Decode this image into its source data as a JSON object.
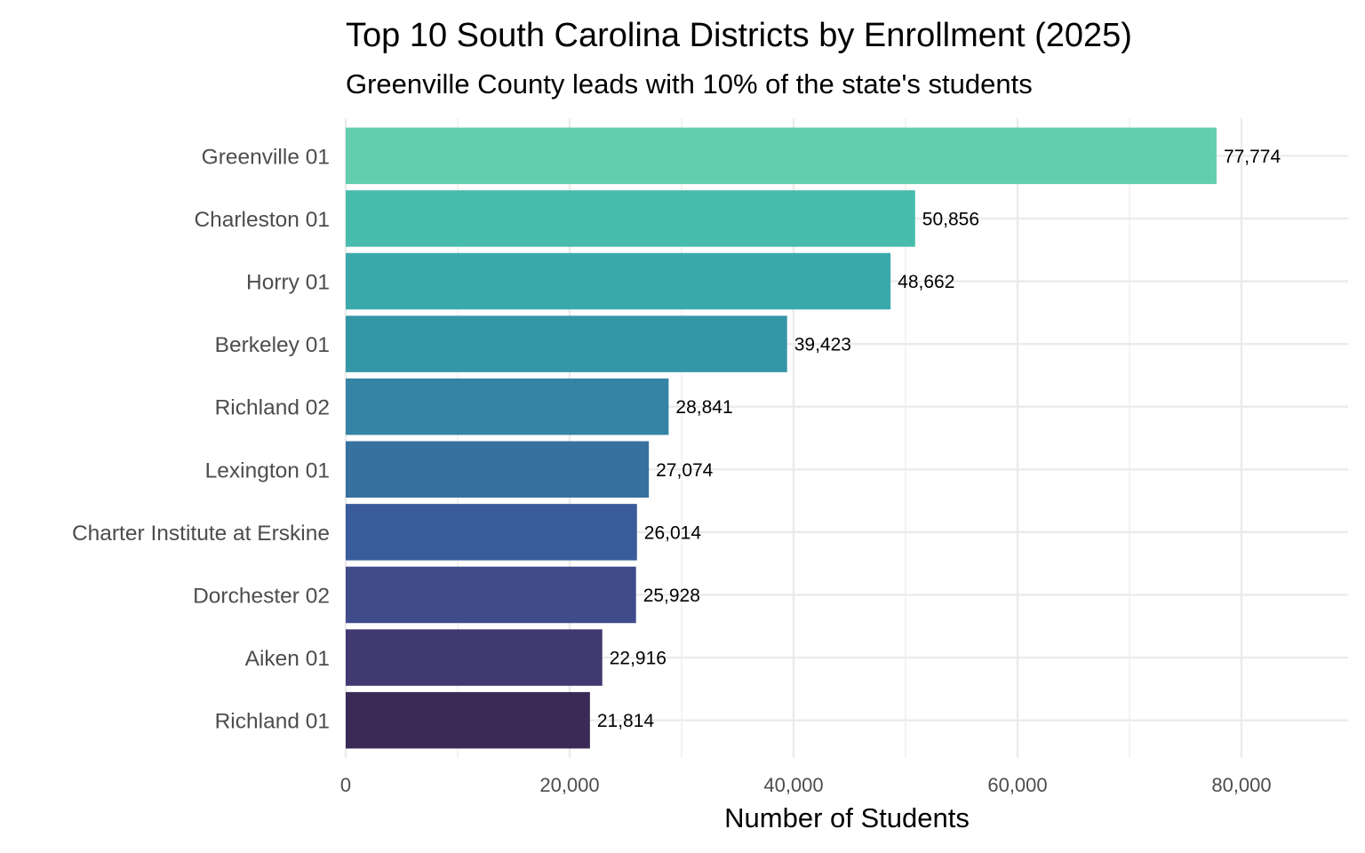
{
  "chart_data": {
    "type": "bar",
    "orientation": "horizontal",
    "title": "Top 10 South Carolina Districts by Enrollment (2025)",
    "subtitle": "Greenville County leads with 10% of the state's students",
    "xlabel": "Number of Students",
    "ylabel": "",
    "xlim": [
      0,
      90000
    ],
    "x_ticks": [
      0,
      20000,
      40000,
      60000,
      80000
    ],
    "x_tick_labels": [
      "0",
      "20,000",
      "40,000",
      "60,000",
      "80,000"
    ],
    "grid": true,
    "categories": [
      "Greenville 01",
      "Charleston 01",
      "Horry 01",
      "Berkeley 01",
      "Richland 02",
      "Lexington 01",
      "Charter Institute at Erskine",
      "Dorchester 02",
      "Aiken 01",
      "Richland 01"
    ],
    "values": [
      77774,
      50856,
      48662,
      39423,
      28841,
      27074,
      26014,
      25928,
      22916,
      21814
    ],
    "data_labels": [
      "77,774",
      "50,856",
      "48,662",
      "39,423",
      "28,841",
      "27,074",
      "26,014",
      "25,928",
      "22,916",
      "21,814"
    ],
    "colors": [
      "#62CEAC",
      "#47BBAC",
      "#3AA9AC",
      "#3596A8",
      "#3584A5",
      "#37719F",
      "#3B5C9A",
      "#404B8C",
      "#413A72",
      "#3B2A55"
    ]
  }
}
